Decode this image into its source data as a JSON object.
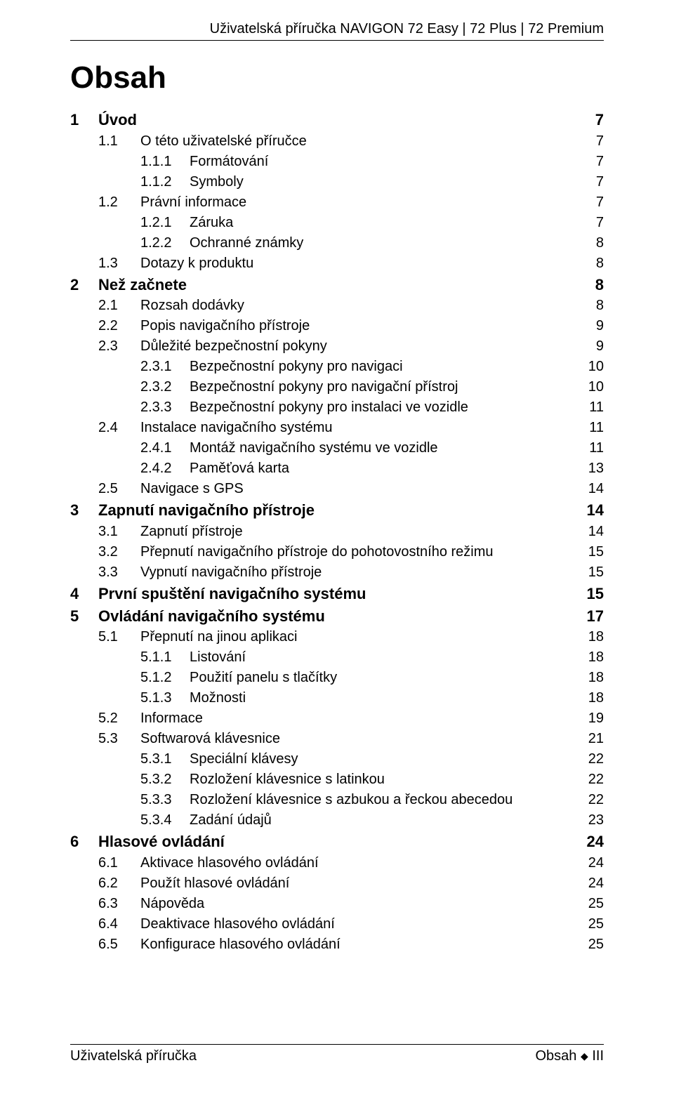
{
  "header": "Uživatelská příručka NAVIGON 72 Easy | 72 Plus | 72 Premium",
  "title": "Obsah",
  "footer_left": "Uživatelská příručka",
  "footer_right_label": "Obsah",
  "footer_right_page": "III",
  "toc": [
    {
      "level": 0,
      "num": "1",
      "label": "Úvod",
      "page": "7"
    },
    {
      "level": 1,
      "num": "1.1",
      "label": "O této uživatelské příručce",
      "page": "7"
    },
    {
      "level": 2,
      "num": "1.1.1",
      "label": "Formátování",
      "page": "7"
    },
    {
      "level": 2,
      "num": "1.1.2",
      "label": "Symboly",
      "page": "7"
    },
    {
      "level": 1,
      "num": "1.2",
      "label": "Právní informace",
      "page": "7"
    },
    {
      "level": 2,
      "num": "1.2.1",
      "label": "Záruka",
      "page": "7"
    },
    {
      "level": 2,
      "num": "1.2.2",
      "label": "Ochranné známky",
      "page": "8"
    },
    {
      "level": 1,
      "num": "1.3",
      "label": "Dotazy k produktu",
      "page": "8"
    },
    {
      "level": 0,
      "num": "2",
      "label": "Než začnete",
      "page": "8"
    },
    {
      "level": 1,
      "num": "2.1",
      "label": "Rozsah dodávky",
      "page": "8"
    },
    {
      "level": 1,
      "num": "2.2",
      "label": "Popis navigačního přístroje",
      "page": "9"
    },
    {
      "level": 1,
      "num": "2.3",
      "label": "Důležité bezpečnostní pokyny",
      "page": "9"
    },
    {
      "level": 2,
      "num": "2.3.1",
      "label": "Bezpečnostní pokyny pro navigaci",
      "page": "10"
    },
    {
      "level": 2,
      "num": "2.3.2",
      "label": "Bezpečnostní pokyny pro navigační přístroj",
      "page": "10"
    },
    {
      "level": 2,
      "num": "2.3.3",
      "label": "Bezpečnostní pokyny pro instalaci ve vozidle",
      "page": "11"
    },
    {
      "level": 1,
      "num": "2.4",
      "label": "Instalace navigačního systému",
      "page": "11"
    },
    {
      "level": 2,
      "num": "2.4.1",
      "label": "Montáž navigačního systému ve vozidle",
      "page": "11"
    },
    {
      "level": 2,
      "num": "2.4.2",
      "label": "Paměťová karta",
      "page": "13"
    },
    {
      "level": 1,
      "num": "2.5",
      "label": "Navigace s GPS",
      "page": "14"
    },
    {
      "level": 0,
      "num": "3",
      "label": "Zapnutí navigačního přístroje",
      "page": "14"
    },
    {
      "level": 1,
      "num": "3.1",
      "label": "Zapnutí přístroje",
      "page": "14"
    },
    {
      "level": 1,
      "num": "3.2",
      "label": "Přepnutí navigačního přístroje do pohotovostního režimu",
      "page": "15"
    },
    {
      "level": 1,
      "num": "3.3",
      "label": "Vypnutí navigačního přístroje",
      "page": "15"
    },
    {
      "level": 0,
      "num": "4",
      "label": "První spuštění navigačního systému",
      "page": "15"
    },
    {
      "level": 0,
      "num": "5",
      "label": "Ovládání navigačního systému",
      "page": "17"
    },
    {
      "level": 1,
      "num": "5.1",
      "label": "Přepnutí na jinou aplikaci",
      "page": "18"
    },
    {
      "level": 2,
      "num": "5.1.1",
      "label": "Listování",
      "page": "18"
    },
    {
      "level": 2,
      "num": "5.1.2",
      "label": "Použití panelu s tlačítky",
      "page": "18"
    },
    {
      "level": 2,
      "num": "5.1.3",
      "label": "Možnosti",
      "page": "18"
    },
    {
      "level": 1,
      "num": "5.2",
      "label": "Informace",
      "page": "19"
    },
    {
      "level": 1,
      "num": "5.3",
      "label": "Softwarová klávesnice",
      "page": "21"
    },
    {
      "level": 2,
      "num": "5.3.1",
      "label": "Speciální klávesy",
      "page": "22"
    },
    {
      "level": 2,
      "num": "5.3.2",
      "label": "Rozložení klávesnice s latinkou",
      "page": "22"
    },
    {
      "level": 2,
      "num": "5.3.3",
      "label": "Rozložení klávesnice s azbukou a řeckou abecedou",
      "page": "22"
    },
    {
      "level": 2,
      "num": "5.3.4",
      "label": "Zadání údajů",
      "page": "23"
    },
    {
      "level": 0,
      "num": "6",
      "label": "Hlasové ovládání",
      "page": "24"
    },
    {
      "level": 1,
      "num": "6.1",
      "label": "Aktivace hlasového ovládání",
      "page": "24"
    },
    {
      "level": 1,
      "num": "6.2",
      "label": "Použít hlasové ovládání",
      "page": "24"
    },
    {
      "level": 1,
      "num": "6.3",
      "label": "Nápověda",
      "page": "25"
    },
    {
      "level": 1,
      "num": "6.4",
      "label": "Deaktivace hlasového ovládání",
      "page": "25"
    },
    {
      "level": 1,
      "num": "6.5",
      "label": "Konfigurace hlasového ovládání",
      "page": "25"
    }
  ]
}
